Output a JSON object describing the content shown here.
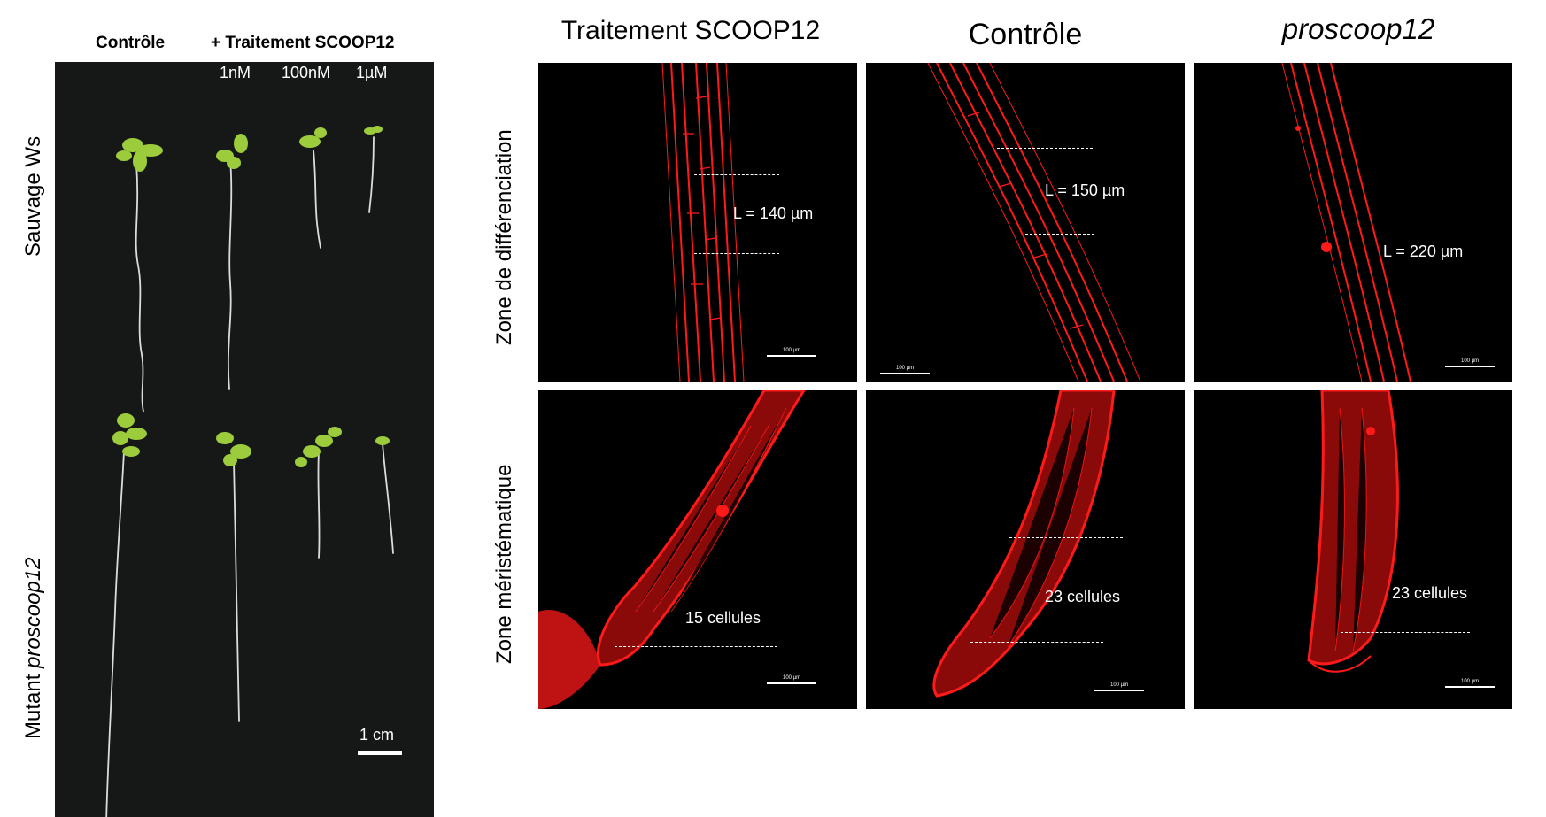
{
  "left_panel": {
    "header_control": "Contrôle",
    "header_treatment": "+ Traitement SCOOP12",
    "concentrations": [
      "1nM",
      "100nM",
      "1µM"
    ],
    "row_wildtype": "Sauvage Ws",
    "row_mutant_prefix": "Mutant ",
    "row_mutant_name": "proscoop12",
    "scale_label": "1 cm"
  },
  "right_panel": {
    "columns": [
      "Traitement SCOOP12",
      "Contrôle",
      "proscoop12"
    ],
    "rows": [
      "Zone de différenciation",
      "Zone méristématique"
    ],
    "differentiation_lengths": [
      "L = 140 µm",
      "L = 150 µm",
      "L = 220 µm"
    ],
    "meristem_counts": [
      "15 cellules",
      "23 cellules",
      "23 cellules"
    ],
    "scale_label": "100 µm"
  },
  "colors": {
    "fluorescence": "#ff1a1a",
    "photo_background": "#161818",
    "seedling_green": "#9ccc3c",
    "root_white": "#dcdcdc"
  }
}
